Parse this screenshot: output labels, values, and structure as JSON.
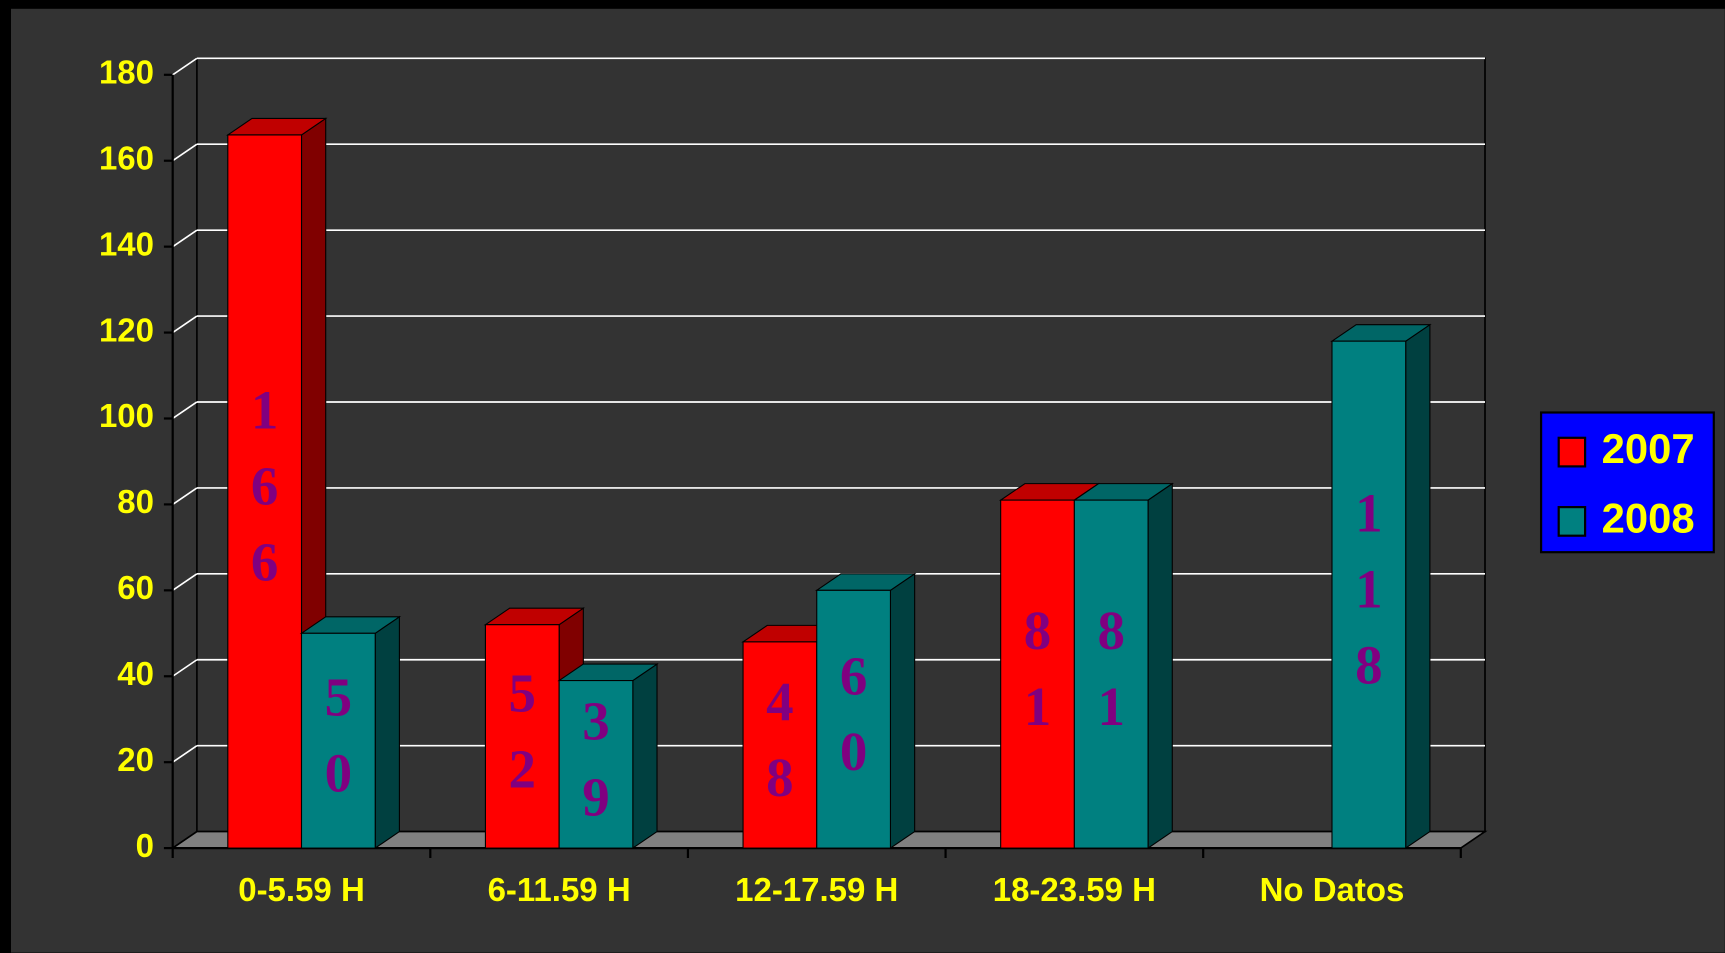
{
  "chart_data": {
    "type": "bar3d",
    "categories": [
      "0-5.59 H",
      "6-11.59 H",
      "12-17.59 H",
      "18-23.59 H",
      "No Datos"
    ],
    "series": [
      {
        "name": "2007",
        "color": "#ff0000",
        "values": [
          166,
          52,
          48,
          81,
          null
        ]
      },
      {
        "name": "2008",
        "color": "#008080",
        "values": [
          50,
          39,
          60,
          81,
          118
        ]
      }
    ],
    "ylim": [
      0,
      180
    ],
    "yticks": [
      0,
      20,
      40,
      60,
      80,
      100,
      120,
      140,
      160,
      180
    ],
    "grid": true,
    "legend": "right"
  }
}
